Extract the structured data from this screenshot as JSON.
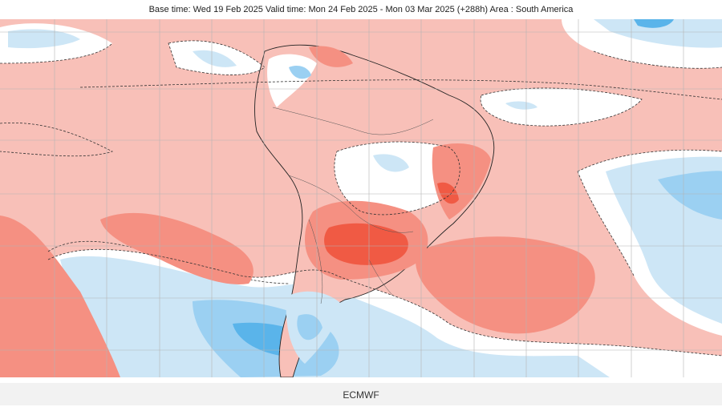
{
  "header": {
    "title": "Base time: Wed 19 Feb 2025 Valid time: Mon 24 Feb 2025 - Mon 03 Mar 2025 (+288h) Area : South America"
  },
  "map": {
    "area": "South America",
    "colors": {
      "strong_warm": "#f05a44",
      "warm": "#f59082",
      "mild_warm": "#f8c0b8",
      "neutral": "#ffffff",
      "mild_cool": "#cde6f6",
      "cool": "#9bd0f2",
      "strong_cool": "#5ab4ea",
      "grid": "#b4b4b4",
      "coast": "#222222",
      "contour": "#333333"
    }
  },
  "footer": {
    "label": "ECMWF"
  }
}
